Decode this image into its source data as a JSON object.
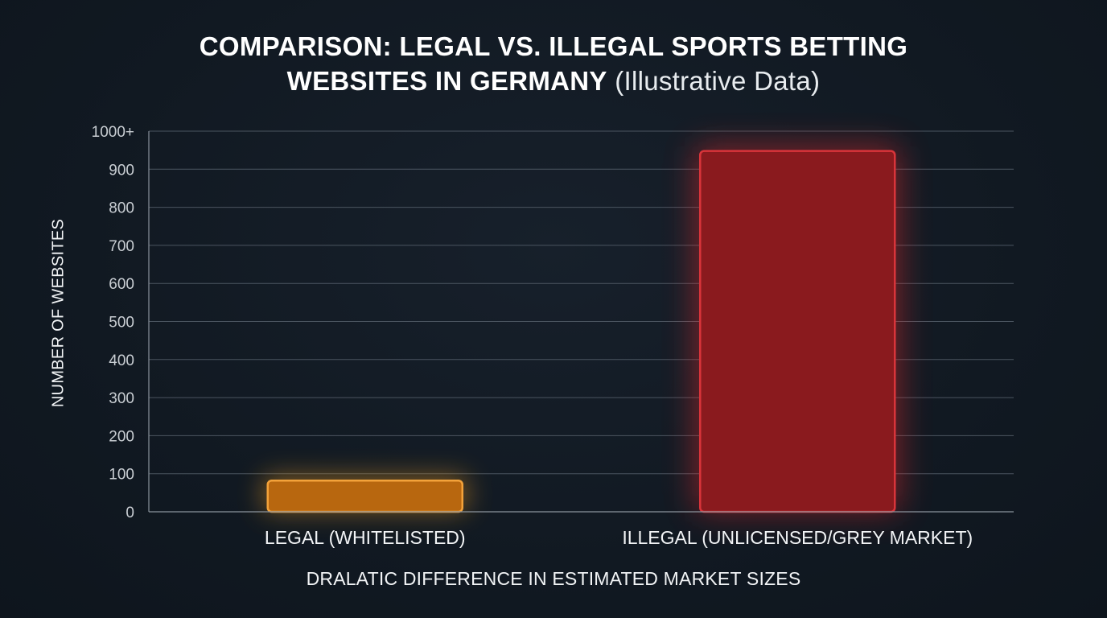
{
  "title": {
    "main_line1": "COMPARISON: LEGAL VS. ILLEGAL SPORTS BETTING",
    "main_line2": "WEBSITES IN GERMANY",
    "qualifier": "(Illustrative Data)"
  },
  "chart_data": {
    "type": "bar",
    "title": "COMPARISON: LEGAL VS. ILLEGAL SPORTS BETTING WEBSITES IN GERMANY (Illustrative Data)",
    "xlabel": "DRALATIC DIFFERENCE IN ESTIMATED MARKET SIZES",
    "ylabel": "NUMBER OF WEBSITES",
    "categories": [
      "LEGAL (WHITELISTED)",
      "ILLEGAL (UNLICENSED/GREY MARKET)"
    ],
    "values": [
      82,
      948
    ],
    "colors": [
      "#b8670f",
      "#8a1a1e"
    ],
    "border_colors": [
      "#f3a23a",
      "#d9343a"
    ],
    "glow_colors": [
      "#ffa51e",
      "#ff2a2a"
    ],
    "ylim": [
      0,
      1000
    ],
    "yticks": [
      0,
      100,
      200,
      300,
      400,
      500,
      600,
      700,
      800,
      900,
      1000
    ],
    "ytick_labels": [
      "0",
      "100",
      "200",
      "300",
      "400",
      "500",
      "600",
      "700",
      "800",
      "900",
      "1000+"
    ],
    "grid": true,
    "legend": "none"
  },
  "colors": {
    "background": "#111922",
    "grid": "#4b5560",
    "axis": "#8a939c",
    "tick_text": "#c9ced3"
  }
}
